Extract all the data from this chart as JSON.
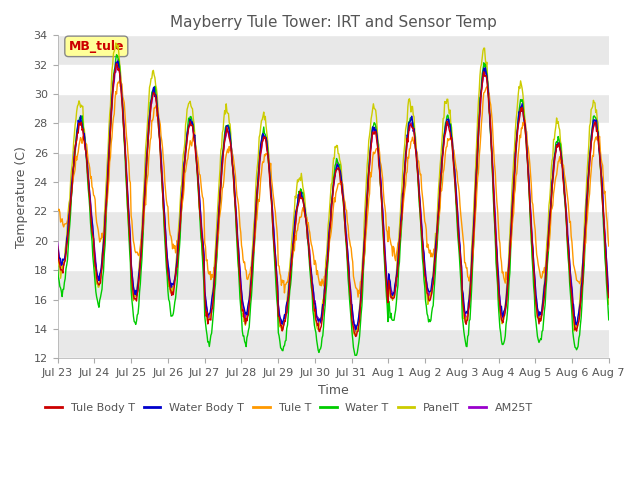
{
  "title": "Mayberry Tule Tower: IRT and Sensor Temp",
  "xlabel": "Time",
  "ylabel": "Temperature (C)",
  "ylim": [
    12,
    34
  ],
  "yticks": [
    12,
    14,
    16,
    18,
    20,
    22,
    24,
    26,
    28,
    30,
    32,
    34
  ],
  "date_labels": [
    "Jul 23",
    "Jul 24",
    "Jul 25",
    "Jul 26",
    "Jul 27",
    "Jul 28",
    "Jul 29",
    "Jul 30",
    "Jul 31",
    "Aug 1",
    "Aug 2",
    "Aug 3",
    "Aug 4",
    "Aug 5",
    "Aug 6",
    "Aug 7"
  ],
  "legend_entries": [
    "Tule Body T",
    "Water Body T",
    "Tule T",
    "Water T",
    "PanelT",
    "AM25T"
  ],
  "legend_colors": [
    "#cc0000",
    "#0000cc",
    "#ff9900",
    "#00cc00",
    "#cccc00",
    "#9900cc"
  ],
  "annotation_text": "MB_tule",
  "annotation_color": "#cc0000",
  "annotation_bg": "#ffff99",
  "n_days": 15,
  "hours_per_day": 24,
  "peak_hour": 0.6,
  "trough_hour": 0.1,
  "day_peaks": [
    28.0,
    32.0,
    30.0,
    28.0,
    27.5,
    27.0,
    23.0,
    25.0,
    27.5,
    28.0,
    28.0,
    31.5,
    29.0,
    26.5,
    28.0
  ],
  "day_troughs": [
    17.5,
    16.5,
    15.5,
    16.0,
    14.0,
    14.0,
    13.5,
    13.5,
    13.0,
    15.5,
    15.5,
    14.0,
    14.0,
    14.0,
    13.5
  ]
}
